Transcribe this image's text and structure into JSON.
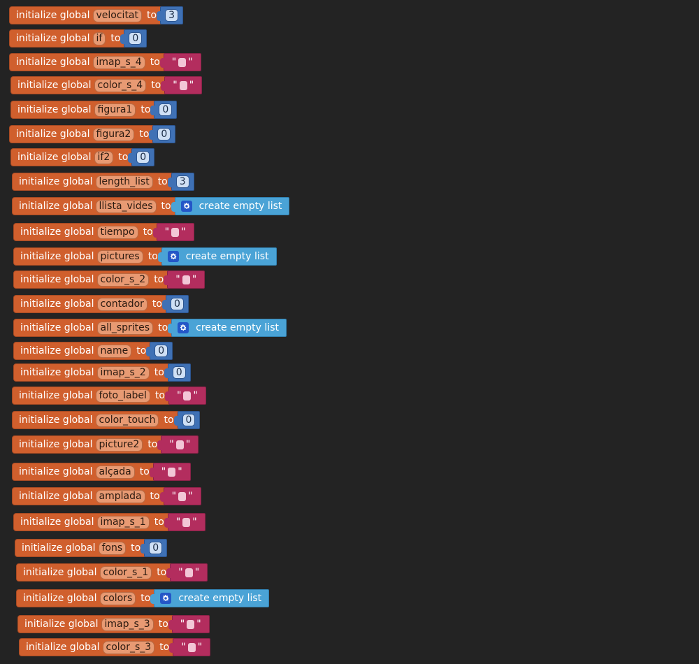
{
  "labels": {
    "initialize": "initialize global",
    "to": "to",
    "create_empty_list": "create empty list",
    "quote": "\""
  },
  "colors": {
    "background": "#232323",
    "variable_block": "#d05f2d",
    "number_block": "#3f71b5",
    "text_block": "#b32d5e",
    "list_block": "#4aa3d6",
    "gear_icon": "#2456c7"
  },
  "blocks": [
    {
      "name": "velocitat",
      "type": "number",
      "value": "3"
    },
    {
      "name": "if",
      "type": "number",
      "value": "0"
    },
    {
      "name": "imap_s_4",
      "type": "text",
      "value": ""
    },
    {
      "name": "color_s_4",
      "type": "text",
      "value": ""
    },
    {
      "name": "figura1",
      "type": "number",
      "value": "0"
    },
    {
      "name": "figura2",
      "type": "number",
      "value": "0"
    },
    {
      "name": "if2",
      "type": "number",
      "value": "0"
    },
    {
      "name": "length_list",
      "type": "number",
      "value": "3"
    },
    {
      "name": "llista_vides",
      "type": "list",
      "value": ""
    },
    {
      "name": "tiempo",
      "type": "text",
      "value": ""
    },
    {
      "name": "pictures",
      "type": "list",
      "value": ""
    },
    {
      "name": "color_s_2",
      "type": "text",
      "value": ""
    },
    {
      "name": "contador",
      "type": "number",
      "value": "0"
    },
    {
      "name": "all_sprites",
      "type": "list",
      "value": ""
    },
    {
      "name": "name",
      "type": "number",
      "value": "0"
    },
    {
      "name": "imap_s_2",
      "type": "number",
      "value": "0"
    },
    {
      "name": "foto_label",
      "type": "text",
      "value": ""
    },
    {
      "name": "color_touch",
      "type": "number",
      "value": "0"
    },
    {
      "name": "picture2",
      "type": "text",
      "value": ""
    },
    {
      "name": "alçada",
      "type": "text",
      "value": ""
    },
    {
      "name": "amplada",
      "type": "text",
      "value": ""
    },
    {
      "name": "imap_s_1",
      "type": "text",
      "value": ""
    },
    {
      "name": "fons",
      "type": "number",
      "value": "0"
    },
    {
      "name": "color_s_1",
      "type": "text",
      "value": ""
    },
    {
      "name": "colors",
      "type": "list",
      "value": ""
    },
    {
      "name": "imap_s_3",
      "type": "text",
      "value": ""
    },
    {
      "name": "color_s_3",
      "type": "text",
      "value": ""
    }
  ]
}
